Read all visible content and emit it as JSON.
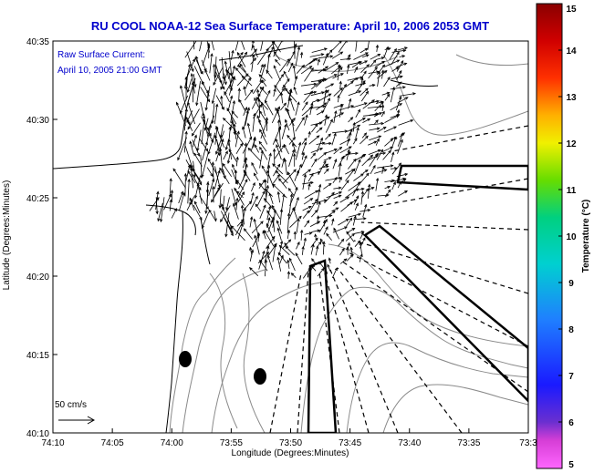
{
  "chart_data": {
    "type": "vector-field-map",
    "title": "RU COOL  NOAA-12  Sea Surface Temperature:  April 10, 2006 2053 GMT",
    "inset_line1": "Raw Surface Current:",
    "inset_line2": "April 10, 2005 21:00 GMT",
    "xlabel": "Longitude (Degrees:Minutes)",
    "ylabel": "Latitude (Degrees:Minutes)",
    "x_ticks": [
      "74:10",
      "74:05",
      "74:00",
      "73:55",
      "73:50",
      "73:45",
      "73:40",
      "73:35",
      "73:3"
    ],
    "y_ticks": [
      "40:10",
      "40:15",
      "40:20",
      "40:25",
      "40:30",
      "40:35"
    ],
    "xlim_minutes": [
      0,
      40
    ],
    "ylim_minutes": [
      0,
      25
    ],
    "reference_vector": {
      "label": "50 cm/s",
      "speed_cm_s": 50
    },
    "colorbar": {
      "label": "Temperature (°C)",
      "min": 5,
      "max": 15,
      "ticks": [
        "5",
        "6",
        "7",
        "8",
        "9",
        "10",
        "11",
        "12",
        "13",
        "14",
        "15"
      ]
    }
  }
}
